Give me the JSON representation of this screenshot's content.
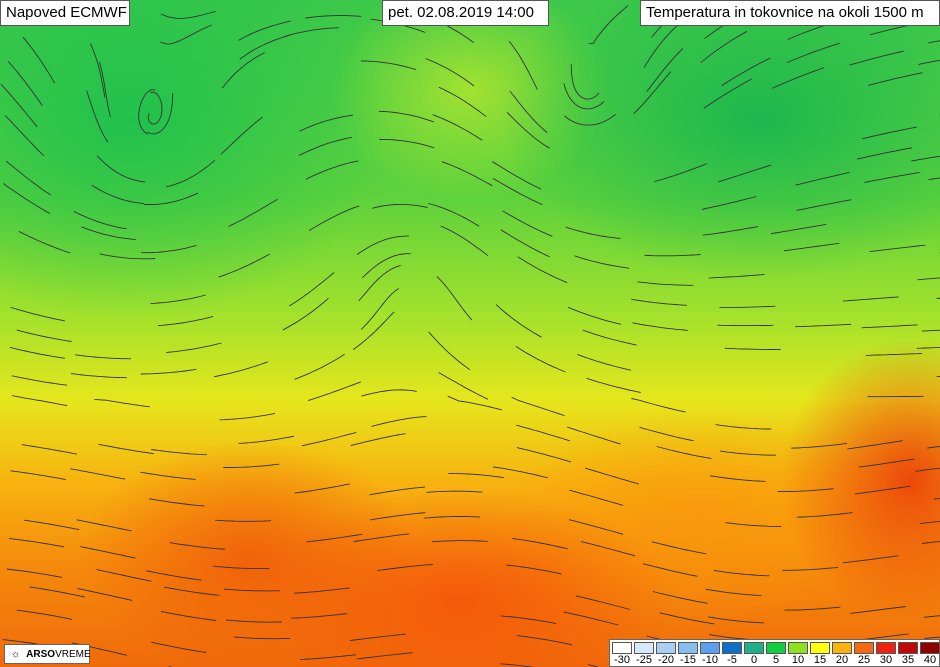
{
  "header": {
    "model": "Napoved ECMWF",
    "datetime": "pet. 02.08.2019 14:00",
    "title": "Temperatura in tokovnice na okoli 1500 m"
  },
  "legend": {
    "labels": [
      "-30",
      "-25",
      "-20",
      "-15",
      "-10",
      "-5",
      "0",
      "5",
      "10",
      "15",
      "20",
      "25",
      "30",
      "35",
      "40"
    ],
    "colors": [
      "#ffffff",
      "#d6e8fb",
      "#a9cff5",
      "#86bdf2",
      "#5aa0ee",
      "#1070c8",
      "#20b088",
      "#10d040",
      "#8ee020",
      "#ffff10",
      "#fab410",
      "#f56a10",
      "#f02010",
      "#c00808",
      "#900000"
    ]
  },
  "logo": {
    "icon": "arso-sun-icon",
    "brand_bold": "ARSO",
    "brand_light": "VREME"
  }
}
